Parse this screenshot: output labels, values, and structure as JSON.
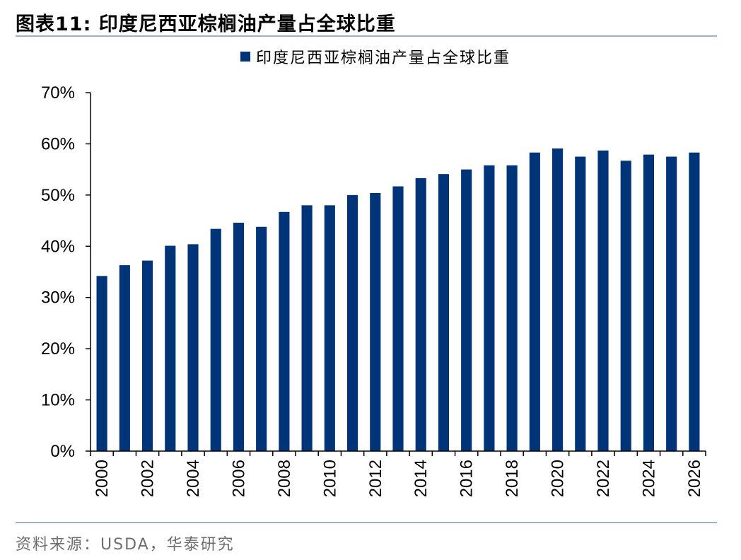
{
  "figure": {
    "title": "图表11:  印度尼西亚棕榈油产量占全球比重",
    "source": "资料来源：USDA，华泰研究"
  },
  "colors": {
    "bar": "#003478",
    "rule": "#9fb0c8"
  },
  "chart_data": {
    "type": "bar",
    "title": "",
    "xlabel": "",
    "ylabel": "",
    "legend_position": "top-center",
    "grid": false,
    "ylim": [
      0,
      70
    ],
    "y_ticks": [
      0,
      10,
      20,
      30,
      40,
      50,
      60,
      70
    ],
    "y_tick_labels": [
      "0%",
      "10%",
      "20%",
      "30%",
      "40%",
      "50%",
      "60%",
      "70%"
    ],
    "categories": [
      "2000",
      "2001",
      "2002",
      "2003",
      "2004",
      "2005",
      "2006",
      "2007",
      "2008",
      "2009",
      "2010",
      "2011",
      "2012",
      "2013",
      "2014",
      "2015",
      "2016",
      "2017",
      "2018",
      "2019",
      "2020",
      "2021",
      "2022",
      "2023",
      "2024",
      "2025",
      "2026"
    ],
    "x_tick_labels": [
      "2000",
      "2002",
      "2004",
      "2006",
      "2008",
      "2010",
      "2012",
      "2014",
      "2016",
      "2018",
      "2020",
      "2022",
      "2024",
      "2026"
    ],
    "series": [
      {
        "name": "印度尼西亚棕榈油产量占全球比重",
        "values": [
          34.2,
          36.3,
          37.2,
          40.1,
          40.4,
          43.4,
          44.6,
          43.8,
          46.7,
          48.0,
          48.0,
          50.0,
          50.4,
          51.7,
          53.3,
          54.1,
          55.0,
          55.8,
          55.8,
          58.3,
          59.1,
          57.5,
          58.7,
          56.7,
          57.9,
          57.5,
          58.3
        ]
      }
    ]
  }
}
